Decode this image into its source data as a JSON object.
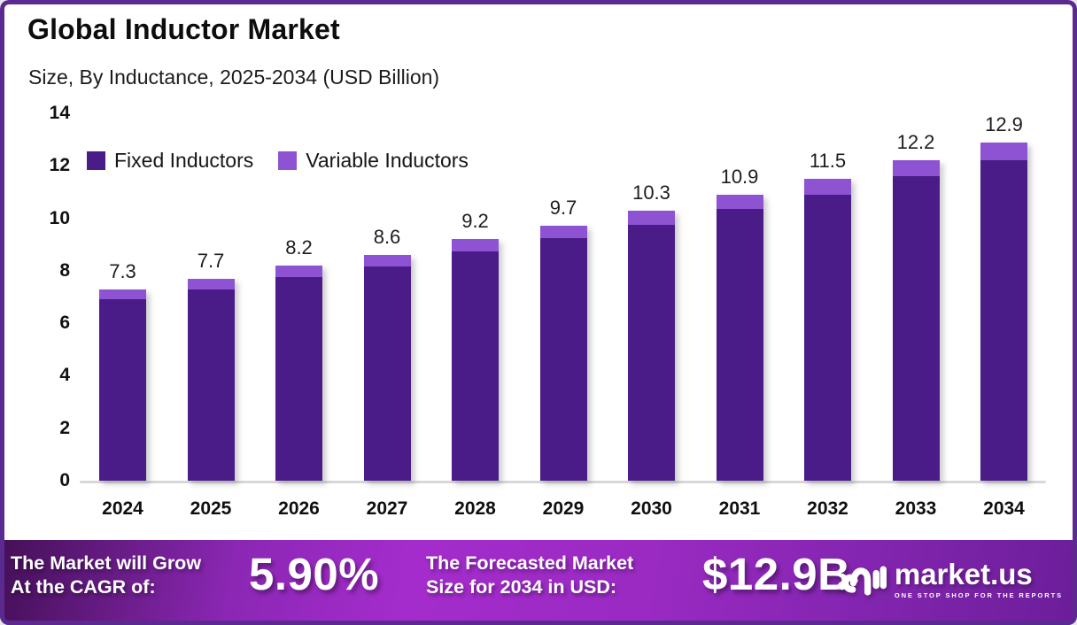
{
  "header": {
    "title": "Global Inductor Market",
    "subtitle": "Size, By Inductance, 2025-2034 (USD Billion)"
  },
  "chart_data": {
    "type": "bar",
    "stacked": true,
    "title": "Global Inductor Market Size, By Inductance, 2025-2034 (USD Billion)",
    "categories": [
      "2024",
      "2025",
      "2026",
      "2027",
      "2028",
      "2029",
      "2030",
      "2031",
      "2032",
      "2033",
      "2034"
    ],
    "series": [
      {
        "name": "Fixed Inductors",
        "color": "#4a1c87",
        "values": [
          6.9,
          7.3,
          7.75,
          8.15,
          8.75,
          9.25,
          9.75,
          10.35,
          10.9,
          11.6,
          12.2
        ]
      },
      {
        "name": "Variable Inductors",
        "color": "#8d53d2",
        "values": [
          0.4,
          0.4,
          0.45,
          0.45,
          0.45,
          0.45,
          0.55,
          0.55,
          0.6,
          0.6,
          0.7
        ]
      }
    ],
    "totals": [
      7.3,
      7.7,
      8.2,
      8.6,
      9.2,
      9.7,
      10.3,
      10.9,
      11.5,
      12.2,
      12.9
    ],
    "total_labels": [
      "7.3",
      "7.7",
      "8.2",
      "8.6",
      "9.2",
      "9.7",
      "10.3",
      "10.9",
      "11.5",
      "12.2",
      "12.9"
    ],
    "xlabel": "",
    "ylabel": "",
    "ylim": [
      0,
      14
    ],
    "yticks": [
      0,
      2,
      4,
      6,
      8,
      10,
      12,
      14
    ],
    "grid": false,
    "legend_position": "top-left"
  },
  "footer": {
    "cagr_label_line1": "The Market will Grow",
    "cagr_label_line2": "At the CAGR of:",
    "cagr_value": "5.90%",
    "forecast_label_line1": "The Forecasted Market",
    "forecast_label_line2": "Size for 2034 in USD:",
    "forecast_value": "$12.9B",
    "logo_text": "market.us",
    "logo_tagline": "ONE STOP SHOP FOR THE REPORTS"
  },
  "colors": {
    "frame_border": "#5b2a90",
    "fixed_series": "#4a1c87",
    "variable_series": "#8d53d2",
    "banner_gradient": [
      "#441057",
      "#a42ccc",
      "#6b1e99"
    ],
    "baseline": "#d8d8d8"
  }
}
